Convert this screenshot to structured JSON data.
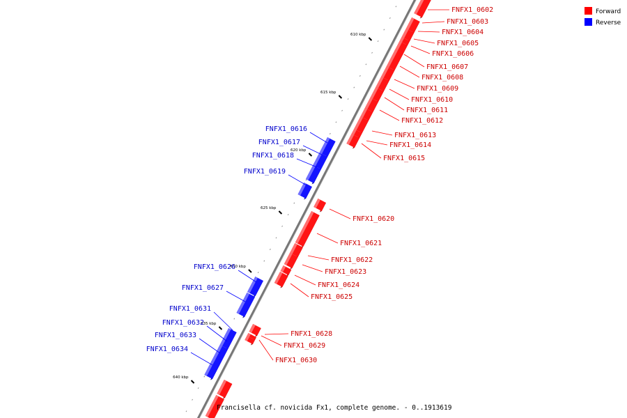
{
  "caption": "Francisella cf. novicida Fx1, complete genome. - 0..1913619",
  "legend": [
    {
      "label": "Forward",
      "color": "#ff0000"
    },
    {
      "label": "Reverse",
      "color": "#0000ff"
    }
  ],
  "colors": {
    "forward": "#ff0000",
    "reverse": "#0000ff",
    "forward_label": "#cc0000",
    "reverse_label": "#0000cc"
  },
  "ticks": [
    "610 kbp",
    "615 kbp",
    "620 kbp",
    "625 kbp",
    "630 kbp",
    "635 kbp",
    "640 kbp"
  ],
  "genes_forward": [
    "FNFX1_0602",
    "FNFX1_0603",
    "FNFX1_0604",
    "FNFX1_0605",
    "FNFX1_0606",
    "FNFX1_0607",
    "FNFX1_0608",
    "FNFX1_0609",
    "FNFX1_0610",
    "FNFX1_0611",
    "FNFX1_0612",
    "FNFX1_0613",
    "FNFX1_0614",
    "FNFX1_0615",
    "FNFX1_0620",
    "FNFX1_0621",
    "FNFX1_0622",
    "FNFX1_0623",
    "FNFX1_0624",
    "FNFX1_0625",
    "FNFX1_0628",
    "FNFX1_0629",
    "FNFX1_0630"
  ],
  "genes_reverse": [
    "FNFX1_0616",
    "FNFX1_0617",
    "FNFX1_0618",
    "FNFX1_0619",
    "FNFX1_0626",
    "FNFX1_0627",
    "FNFX1_0631",
    "FNFX1_0632",
    "FNFX1_0633",
    "FNFX1_0634"
  ]
}
